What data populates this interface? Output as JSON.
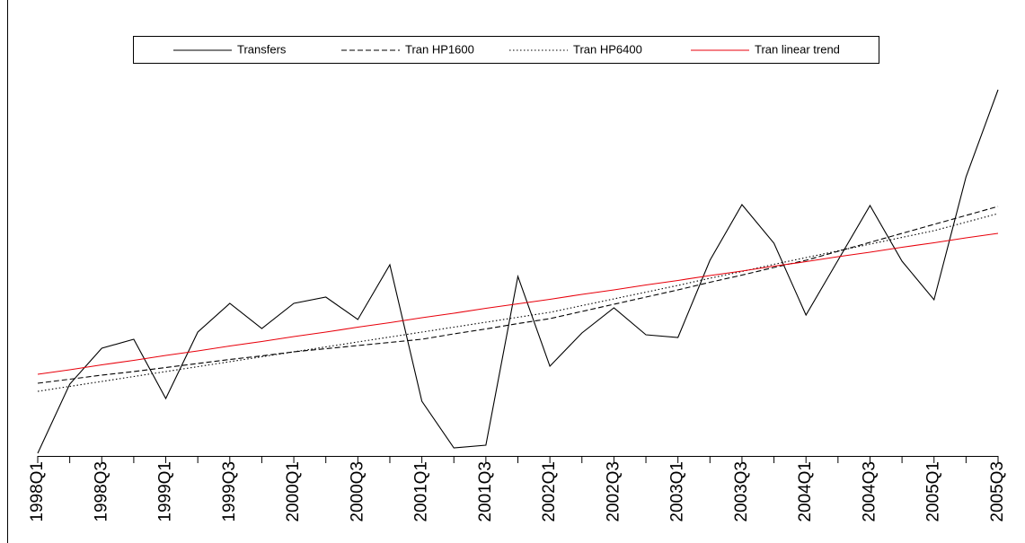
{
  "chart_data": {
    "type": "line",
    "categories": [
      "1998Q1",
      null,
      "1998Q3",
      null,
      "1999Q1",
      null,
      "1999Q3",
      null,
      "2000Q1",
      null,
      "2000Q3",
      null,
      "2001Q1",
      null,
      "2001Q3",
      null,
      "2002Q1",
      null,
      "2002Q3",
      null,
      "2003Q1",
      null,
      "2003Q3",
      null,
      "2004Q1",
      null,
      "2004Q3",
      null,
      "2005Q1",
      null,
      "2005Q3"
    ],
    "ylim": [
      0,
      100
    ],
    "series": [
      {
        "name": "Transfers",
        "color": "#000000",
        "dash": "solid",
        "values": [
          0.6,
          16,
          24,
          26,
          12.8,
          27.6,
          34,
          28.4,
          34,
          35.4,
          30.4,
          42.6,
          12.2,
          1.8,
          2.4,
          40,
          20,
          27.4,
          33,
          27,
          26.4,
          43.6,
          56,
          47.4,
          31.4,
          43.6,
          55.8,
          43.4,
          34.8,
          62.2,
          81.6
        ]
      },
      {
        "name": "Tran HP1600",
        "color": "#000000",
        "dash": "dashed",
        "values": [
          16.2,
          17.1,
          18,
          18.8,
          19.7,
          20.6,
          21.5,
          22.3,
          23.2,
          23.9,
          24.6,
          25.3,
          26,
          27.2,
          28.3,
          29.5,
          30.6,
          32.2,
          33.8,
          35.4,
          37,
          38.7,
          40.3,
          42,
          43.6,
          45.6,
          47.6,
          49.6,
          51.6,
          53.6,
          55.6
        ]
      },
      {
        "name": "Tran HP6400",
        "color": "#000000",
        "dash": "dotted",
        "values": [
          14.4,
          15.5,
          16.6,
          17.7,
          18.8,
          19.9,
          21,
          22.1,
          23.2,
          24.3,
          25.4,
          26.5,
          27.6,
          28.7,
          29.8,
          30.9,
          32,
          33.5,
          35,
          36.5,
          38,
          39.6,
          41.1,
          42.7,
          44.2,
          45.7,
          47.2,
          48.7,
          50.2,
          52.1,
          54
        ]
      },
      {
        "name": "Tran linear trend",
        "color": "#e8000b",
        "dash": "solid",
        "values": [
          18.2,
          19.2,
          20.3,
          21.3,
          22.4,
          23.4,
          24.5,
          25.5,
          26.6,
          27.6,
          28.7,
          29.7,
          30.8,
          31.8,
          32.9,
          33.9,
          34.9,
          36,
          37,
          38.1,
          39.1,
          40.2,
          41.2,
          42.3,
          43.3,
          44.4,
          45.4,
          46.5,
          47.5,
          48.6,
          49.6
        ]
      }
    ]
  }
}
